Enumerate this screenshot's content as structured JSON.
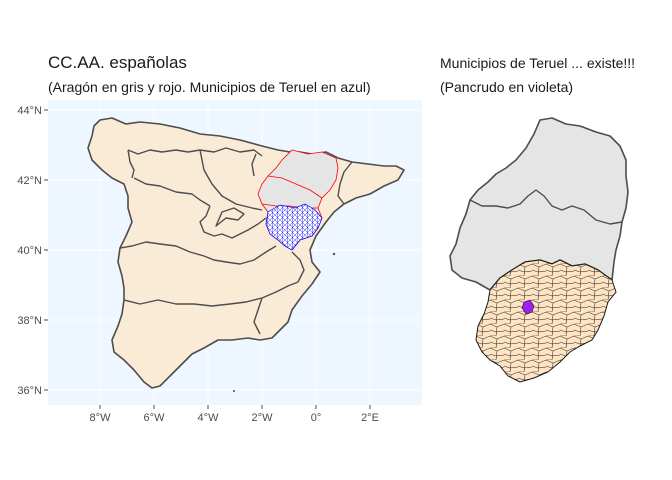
{
  "left_map": {
    "title": "CC.AA. españolas",
    "subtitle": "(Aragón en gris y rojo. Municipios de Teruel en azul)",
    "panel_background": "#eef6ff",
    "land_fill": "#faebd7",
    "aragon_fill": "#e5e5e5",
    "aragon_outline": "#ff0000",
    "teruel_municipalities_color": "#0000ff",
    "lat_ticks": [
      "44°N",
      "42°N",
      "40°N",
      "38°N",
      "36°N"
    ],
    "lon_ticks": [
      "8°W",
      "6°W",
      "4°W",
      "2°W",
      "0°",
      "2°E"
    ]
  },
  "right_map": {
    "title": "Municipios de Teruel ... existe!!!",
    "subtitle": "(Pancrudo en violeta)",
    "aragon_fill": "#e5e5e5",
    "teruel_fill": "#ffe4c4",
    "highlight_municipality": "Pancrudo",
    "highlight_color": "#a020f0"
  },
  "colors": {
    "border": "#4d4d4d",
    "grid": "#ffffff"
  }
}
